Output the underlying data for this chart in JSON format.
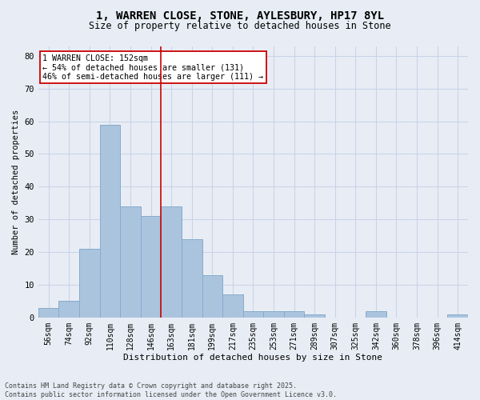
{
  "title_line1": "1, WARREN CLOSE, STONE, AYLESBURY, HP17 8YL",
  "title_line2": "Size of property relative to detached houses in Stone",
  "xlabel": "Distribution of detached houses by size in Stone",
  "ylabel": "Number of detached properties",
  "categories": [
    "56sqm",
    "74sqm",
    "92sqm",
    "110sqm",
    "128sqm",
    "146sqm",
    "163sqm",
    "181sqm",
    "199sqm",
    "217sqm",
    "235sqm",
    "253sqm",
    "271sqm",
    "289sqm",
    "307sqm",
    "325sqm",
    "342sqm",
    "360sqm",
    "378sqm",
    "396sqm",
    "414sqm"
  ],
  "values": [
    3,
    5,
    21,
    59,
    34,
    31,
    34,
    24,
    13,
    7,
    2,
    2,
    2,
    1,
    0,
    0,
    2,
    0,
    0,
    0,
    1
  ],
  "bar_color": "#aac4de",
  "bar_edgecolor": "#88aacb",
  "vline_x": 5.5,
  "vline_color": "#cc0000",
  "annotation_text": "1 WARREN CLOSE: 152sqm\n← 54% of detached houses are smaller (131)\n46% of semi-detached houses are larger (111) →",
  "annotation_box_edgecolor": "#cc0000",
  "annotation_box_facecolor": "#ffffff",
  "ylim": [
    0,
    83
  ],
  "yticks": [
    0,
    10,
    20,
    30,
    40,
    50,
    60,
    70,
    80
  ],
  "grid_color": "#c8d4e8",
  "background_color": "#e8edf5",
  "plot_bg_color": "#e8edf5",
  "footnote": "Contains HM Land Registry data © Crown copyright and database right 2025.\nContains public sector information licensed under the Open Government Licence v3.0.",
  "title_fontsize": 10,
  "subtitle_fontsize": 8.5
}
